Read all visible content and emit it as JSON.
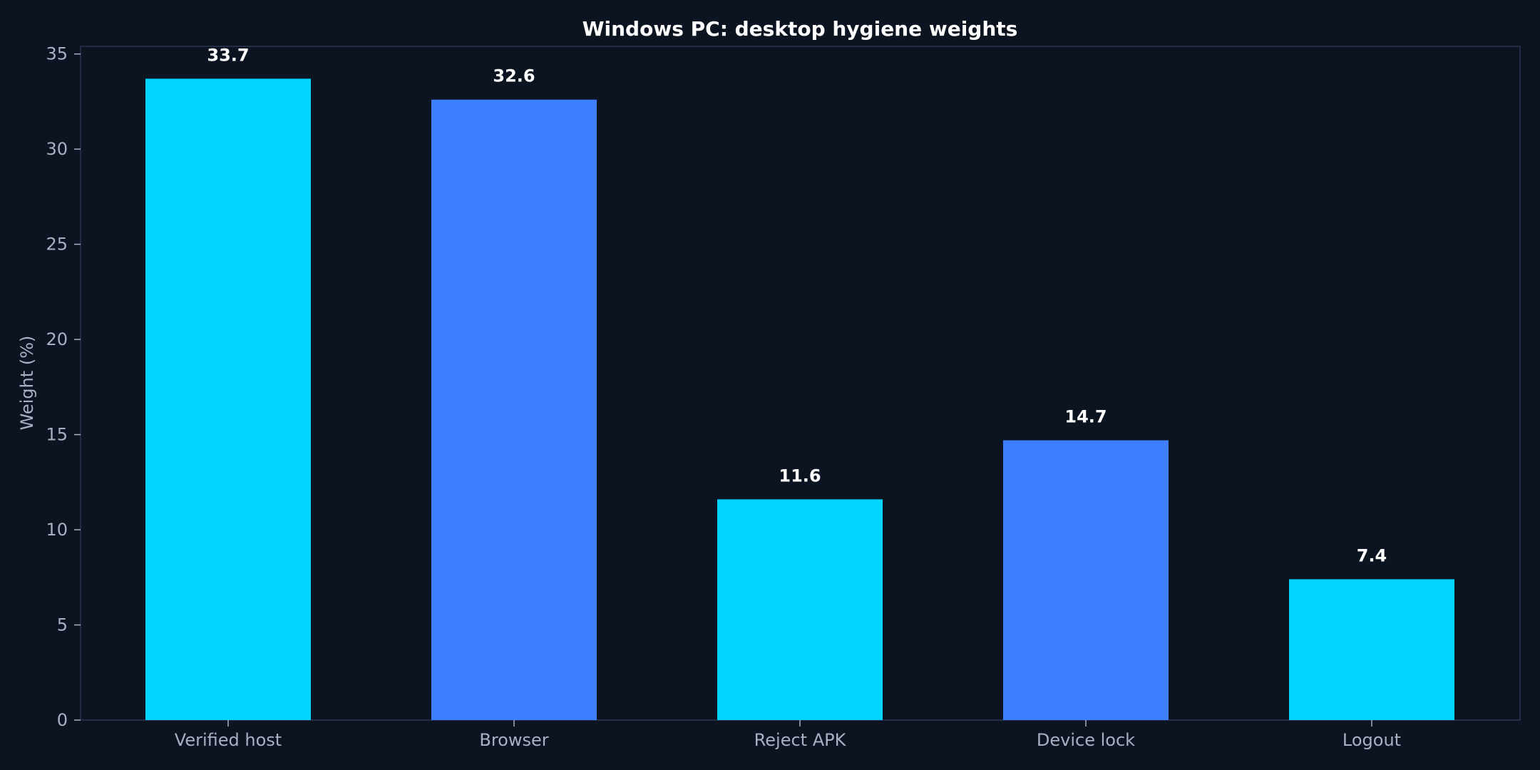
{
  "chart_data": {
    "type": "bar",
    "title": "Windows PC: desktop hygiene weights",
    "xlabel": "",
    "ylabel": "Weight (%)",
    "categories": [
      "Verified host",
      "Browser",
      "Reject APK",
      "Device lock",
      "Logout"
    ],
    "values": [
      33.7,
      32.6,
      11.6,
      14.7,
      7.4
    ],
    "value_labels": [
      "33.7",
      "32.6",
      "11.6",
      "14.7",
      "7.4"
    ],
    "ylim": [
      0,
      35.4
    ],
    "yticks": [
      0,
      5,
      10,
      15,
      20,
      25,
      30,
      35
    ],
    "ytick_labels": [
      "0",
      "5",
      "10",
      "15",
      "20",
      "25",
      "30",
      "35"
    ],
    "bar_colors": [
      "#00d4ff",
      "#3d7fff",
      "#00d4ff",
      "#3d7fff",
      "#00d4ff"
    ],
    "grid": false,
    "legend": "none",
    "colors": {
      "background": "#0c1421",
      "frame": "#2a3550",
      "text": "#a7b1c1",
      "title": "#ffffff"
    }
  }
}
